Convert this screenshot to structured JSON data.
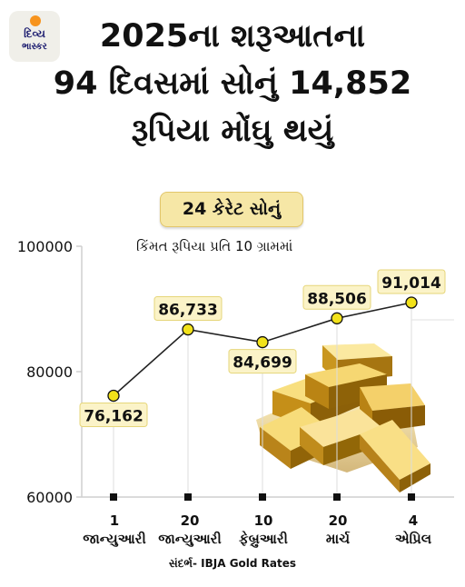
{
  "brand": {
    "line1": "દિવ્ય",
    "line2": "ભાસ્કર"
  },
  "headline": {
    "line1": "2025ના શરૂઆતના",
    "line2": "94 દિવસમાં સોનું 14,852",
    "line3": "રૂપિયા મોંઘુ થયું"
  },
  "badge": "24 કેરેટ સોનું",
  "source": "સંદર્ભ- IBJA Gold Rates",
  "colors": {
    "point": "#f2e21a",
    "label_bg": "#fbf3c8",
    "line": "#222222",
    "badge_bg": "#f6e7a6"
  },
  "chart_data": {
    "type": "line",
    "subtitle": "કિંમત રૂપિયા પ્રતિ 10 ગ્રામમાં",
    "categories": [
      {
        "day": "1",
        "month": "જાન્યુઆરી"
      },
      {
        "day": "20",
        "month": "જાન્યુઆરી"
      },
      {
        "day": "10",
        "month": "ફેબ્રુઆરી"
      },
      {
        "day": "20",
        "month": "માર્ચ"
      },
      {
        "day": "4",
        "month": "એપ્રિલ"
      }
    ],
    "values": [
      76162,
      86733,
      84699,
      88506,
      91014
    ],
    "value_labels": [
      "76,162",
      "86,733",
      "84,699",
      "88,506",
      "91,014"
    ],
    "ylim": [
      60000,
      100000
    ],
    "yticks": [
      "100000",
      "80000",
      "60000"
    ],
    "grid": false
  }
}
